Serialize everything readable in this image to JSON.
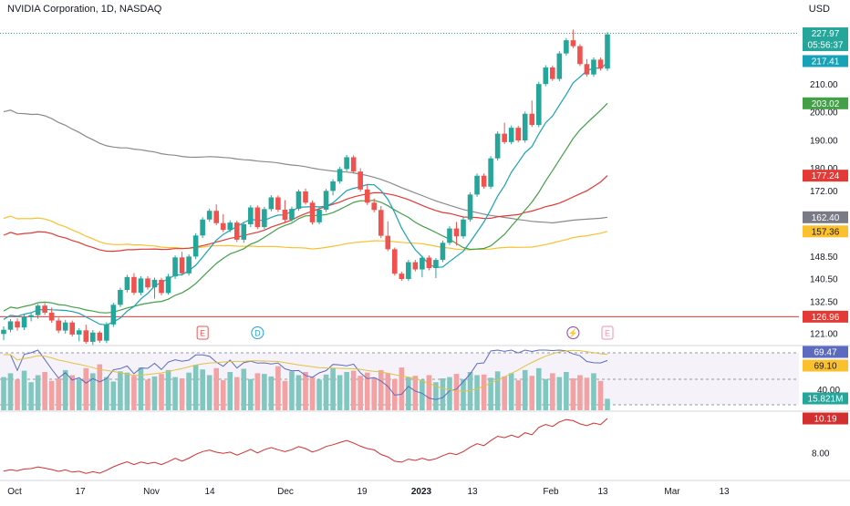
{
  "header": {
    "symbol_title": "NVIDIA Corporation, 1D, NASDAQ",
    "currency": "USD"
  },
  "colors": {
    "up": "#26a69a",
    "down": "#ef5350",
    "ma_fast": "#17a2b8",
    "ma_mid": "#43a047",
    "ma_red": "#e53935",
    "ma_yellow": "#fbc02d",
    "ma_gray": "#8a8a8a",
    "vol_up": "#80c7c0",
    "vol_down": "#f2a2a2",
    "rsi_line": "#5c6bc0",
    "rsi_signal": "#e0c341",
    "lower_line": "#d32f2f",
    "hline": "#e53935"
  },
  "chart_data": [
    {
      "type": "candlestick",
      "title": "NVIDIA Corporation, 1D, NASDAQ",
      "x_labels": [
        "Oct",
        "17",
        "Nov",
        "14",
        "Dec",
        "19",
        "2023",
        "13",
        "Feb",
        "13",
        "Mar",
        "13"
      ],
      "y_ticks": [
        121.0,
        132.5,
        140.5,
        148.5,
        172.0,
        180.0,
        190.0,
        200.0,
        210.0
      ],
      "ylim": [
        117,
        234
      ],
      "candles_count": 89,
      "candles": [
        [
          120.8,
          123.5,
          118.6,
          122.3
        ],
        [
          122.3,
          126.1,
          121.4,
          125.3
        ],
        [
          125.3,
          126.4,
          122.0,
          123.1
        ],
        [
          123.1,
          127.7,
          122.2,
          126.8
        ],
        [
          126.8,
          128.5,
          125.3,
          127.5
        ],
        [
          127.5,
          131.5,
          126.2,
          130.9
        ],
        [
          130.9,
          131.8,
          127.6,
          128.4
        ],
        [
          128.4,
          130.2,
          124.8,
          125.6
        ],
        [
          125.6,
          126.6,
          121.1,
          122.0
        ],
        [
          122.0,
          125.8,
          120.9,
          124.9
        ],
        [
          124.9,
          125.6,
          119.9,
          120.6
        ],
        [
          120.6,
          122.9,
          118.2,
          122.1
        ],
        [
          122.1,
          124.1,
          117.3,
          118.0
        ],
        [
          118.0,
          122.2,
          116.9,
          121.3
        ],
        [
          121.3,
          121.9,
          117.6,
          118.4
        ],
        [
          118.4,
          125.0,
          117.5,
          124.2
        ],
        [
          124.2,
          131.9,
          123.3,
          131.2
        ],
        [
          131.2,
          137.3,
          130.4,
          136.5
        ],
        [
          136.5,
          141.9,
          135.6,
          141.1
        ],
        [
          141.1,
          142.5,
          134.7,
          135.5
        ],
        [
          135.5,
          141.4,
          134.6,
          140.6
        ],
        [
          140.6,
          141.4,
          136.6,
          137.4
        ],
        [
          137.4,
          140.9,
          133.4,
          140.1
        ],
        [
          140.1,
          140.8,
          134.6,
          135.4
        ],
        [
          135.4,
          142.2,
          134.8,
          141.3
        ],
        [
          141.3,
          148.8,
          140.4,
          148.1
        ],
        [
          148.1,
          150.1,
          141.6,
          142.4
        ],
        [
          142.4,
          149.2,
          141.6,
          148.4
        ],
        [
          148.4,
          156.7,
          147.5,
          155.9
        ],
        [
          155.9,
          162.4,
          155.0,
          161.6
        ],
        [
          161.6,
          165.5,
          160.8,
          164.7
        ],
        [
          164.7,
          167.0,
          159.6,
          160.3
        ],
        [
          160.3,
          163.5,
          157.1,
          157.9
        ],
        [
          157.9,
          161.3,
          157.1,
          160.5
        ],
        [
          160.5,
          161.2,
          153.6,
          154.4
        ],
        [
          154.4,
          160.7,
          153.3,
          159.9
        ],
        [
          159.9,
          166.7,
          158.9,
          165.9
        ],
        [
          165.9,
          166.6,
          158.2,
          158.9
        ],
        [
          158.9,
          166.1,
          158.2,
          165.3
        ],
        [
          165.3,
          170.3,
          164.5,
          169.5
        ],
        [
          169.5,
          170.2,
          164.3,
          165.1
        ],
        [
          165.1,
          168.5,
          160.6,
          161.5
        ],
        [
          161.5,
          166.2,
          160.8,
          165.4
        ],
        [
          165.4,
          172.3,
          164.7,
          171.6
        ],
        [
          171.6,
          172.6,
          166.9,
          167.6
        ],
        [
          167.6,
          168.4,
          159.8,
          160.6
        ],
        [
          160.6,
          166.0,
          159.9,
          165.1
        ],
        [
          165.1,
          172.5,
          164.3,
          171.8
        ],
        [
          171.8,
          176.0,
          170.2,
          175.2
        ],
        [
          175.2,
          180.4,
          174.4,
          179.6
        ],
        [
          179.6,
          184.6,
          178.8,
          183.8
        ],
        [
          183.8,
          184.5,
          178.0,
          178.7
        ],
        [
          178.7,
          179.9,
          171.5,
          172.3
        ],
        [
          172.3,
          174.2,
          166.8,
          167.6
        ],
        [
          167.6,
          169.1,
          164.2,
          165.0
        ],
        [
          165.0,
          166.4,
          155.0,
          155.8
        ],
        [
          155.8,
          160.9,
          150.3,
          151.0
        ],
        [
          151.0,
          151.6,
          141.6,
          142.3
        ],
        [
          142.3,
          143.0,
          139.7,
          140.4
        ],
        [
          140.4,
          147.2,
          139.7,
          146.4
        ],
        [
          146.4,
          147.2,
          143.1,
          143.8
        ],
        [
          143.8,
          148.7,
          141.0,
          148.0
        ],
        [
          148.0,
          148.8,
          143.5,
          144.3
        ],
        [
          144.3,
          147.9,
          140.7,
          147.2
        ],
        [
          147.2,
          154.1,
          146.4,
          153.3
        ],
        [
          153.3,
          159.2,
          152.5,
          158.4
        ],
        [
          158.4,
          160.7,
          152.3,
          155.6
        ],
        [
          155.6,
          162.4,
          154.8,
          161.6
        ],
        [
          161.6,
          171.3,
          160.8,
          170.5
        ],
        [
          170.5,
          178.0,
          169.7,
          177.2
        ],
        [
          177.2,
          178.0,
          172.6,
          173.3
        ],
        [
          173.3,
          184.2,
          172.5,
          183.4
        ],
        [
          183.4,
          193.0,
          182.6,
          192.2
        ],
        [
          192.2,
          196.1,
          188.5,
          189.2
        ],
        [
          189.2,
          195.1,
          188.4,
          194.3
        ],
        [
          194.3,
          195.0,
          189.1,
          189.8
        ],
        [
          189.8,
          200.1,
          189.0,
          199.3
        ],
        [
          199.3,
          204.0,
          194.6,
          195.3
        ],
        [
          195.3,
          210.7,
          194.5,
          209.9
        ],
        [
          209.9,
          216.6,
          209.1,
          215.8
        ],
        [
          215.8,
          216.5,
          211.0,
          211.7
        ],
        [
          211.7,
          221.6,
          210.9,
          220.8
        ],
        [
          220.8,
          226.3,
          220.0,
          225.5
        ],
        [
          225.5,
          229.3,
          222.7,
          223.4
        ],
        [
          223.4,
          224.1,
          216.3,
          217.0
        ],
        [
          217.0,
          218.8,
          212.5,
          213.3
        ],
        [
          213.3,
          219.4,
          212.5,
          218.6
        ],
        [
          218.6,
          219.3,
          214.7,
          215.4
        ],
        [
          215.4,
          228.4,
          214.6,
          227.6
        ]
      ],
      "moving_averages": [
        {
          "color_key": "ma_gray",
          "start": 200.0,
          "end": 162.4
        },
        {
          "color_key": "ma_yellow",
          "start": 162.0,
          "end": 157.36
        },
        {
          "color_key": "ma_red",
          "start": 156.0,
          "end": 177.24
        },
        {
          "color_key": "ma_mid",
          "start": 129.0,
          "end": 203.02
        },
        {
          "color_key": "ma_fast",
          "start": 126.0,
          "end": 217.41
        }
      ],
      "horizontal_levels": [
        {
          "value": 126.96,
          "label": "126.96",
          "color_key": "hline",
          "style": "solid"
        },
        {
          "value": 227.97,
          "label": "227.97",
          "color_key": "up",
          "style": "dotted"
        }
      ],
      "price_badges": [
        {
          "label_top": "227.97",
          "label_bottom": "05:56:37",
          "value": 227.97,
          "color": "#26a69a"
        },
        {
          "label_top": "217.41",
          "value": 217.41,
          "color": "#17a2b8"
        },
        {
          "label_top": "203.02",
          "value": 203.02,
          "color": "#43a047"
        },
        {
          "label_top": "177.24",
          "value": 177.24,
          "color": "#e53935"
        },
        {
          "label_top": "162.40",
          "value": 162.4,
          "color": "#787b86"
        },
        {
          "label_top": "157.36",
          "value": 157.36,
          "color": "#fbc02d",
          "text_color": "#131722"
        },
        {
          "label_top": "126.96",
          "value": 126.96,
          "color": "#e53935"
        }
      ],
      "event_markers": [
        {
          "label": "E",
          "color": "#ef5350",
          "index": 29
        },
        {
          "label": "D",
          "color": "#26a0da",
          "index": 37
        },
        {
          "label": "⚡",
          "color": "#8e44ad",
          "index": 83
        },
        {
          "label": "E",
          "color": "#f48fb1",
          "index": 88
        }
      ]
    },
    {
      "type": "bar+line",
      "title": "",
      "volume_scale_ylim": [
        0,
        100
      ],
      "rsi_ylim": [
        20,
        80
      ],
      "y_ticks": [
        "40.00"
      ],
      "badges": [
        {
          "label": "69.47",
          "color": "#5c6bc0"
        },
        {
          "label": "69.10",
          "color": "#fbc02d",
          "text_color": "#131722"
        },
        {
          "label": "15.821M",
          "color": "#26a69a"
        }
      ],
      "volumes": [
        52,
        58,
        48,
        62,
        44,
        55,
        60,
        46,
        50,
        63,
        55,
        49,
        66,
        58,
        72,
        52,
        45,
        61,
        59,
        54,
        67,
        48,
        53,
        57,
        63,
        52,
        50,
        59,
        71,
        64,
        55,
        66,
        47,
        60,
        52,
        65,
        49,
        58,
        57,
        53,
        69,
        46,
        61,
        55,
        60,
        52,
        48,
        56,
        66,
        55,
        60,
        62,
        54,
        59,
        51,
        63,
        58,
        49,
        67,
        52,
        54,
        48,
        55,
        44,
        50,
        52,
        57,
        49,
        60,
        55,
        56,
        51,
        61,
        53,
        58,
        47,
        63,
        54,
        66,
        49,
        58,
        52,
        60,
        50,
        55,
        51,
        58,
        46,
        18
      ]
    },
    {
      "type": "line",
      "title": "",
      "y_ticks": [
        "8.00"
      ],
      "ylim": [
        6.5,
        10.6
      ],
      "badge": "10.19"
    }
  ]
}
